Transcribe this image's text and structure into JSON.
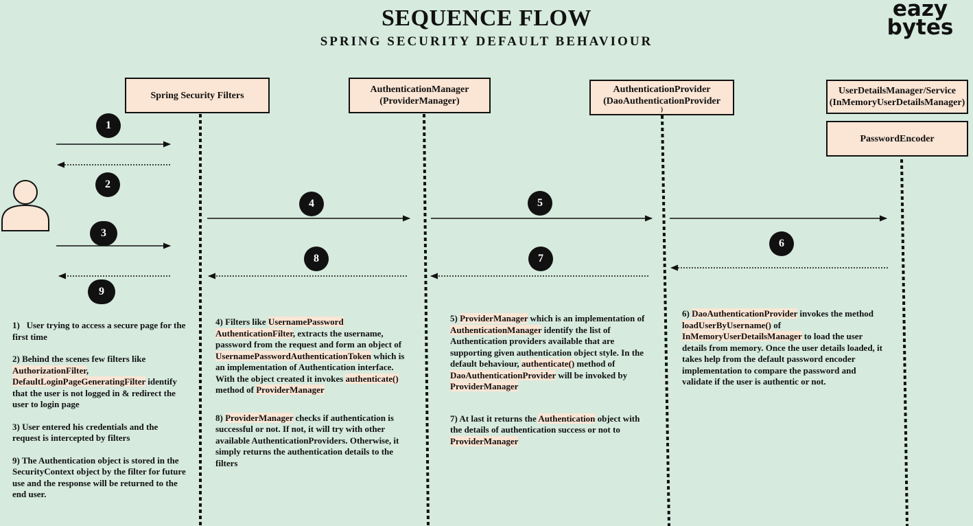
{
  "header": {
    "title": "SEQUENCE FLOW",
    "subtitle": "SPRING SECURITY DEFAULT BEHAVIOUR",
    "logo_line1": "eazy",
    "logo_line2": "bytes"
  },
  "components": {
    "filters": "Spring Security Filters",
    "manager_line1": "AuthenticationManager",
    "manager_line2": "(ProviderManager)",
    "provider_line1": "AuthenticationProvider",
    "provider_line2": "(DaoAuthenticationProvider",
    "provider_line3": ")",
    "userdetails_line1": "UserDetailsManager/Service",
    "userdetails_line2": "(InMemoryUserDetailsManager)",
    "encoder": "PasswordEncoder"
  },
  "steps": [
    "1",
    "2",
    "3",
    "4",
    "5",
    "6",
    "7",
    "8",
    "9"
  ],
  "notes": {
    "n1_num": "1)",
    "n1_text": "User trying to access a secure page for the first time",
    "n2_pre": "2) Behind the scenes few filters like ",
    "n2_h1": "AuthorizationFilter",
    "n2_mid": ", ",
    "n2_h2": "DefaultLoginPageGeneratingFilter",
    "n2_post": " identify that the user is not logged in & redirect the user to login page",
    "n3": "3) User entered his credentials and the request is intercepted by filters",
    "n9": "9) The Authentication object is stored in the SecurityContext object by the filter for future use and the response will be returned to the end user.",
    "n4_pre": "4) Filters like ",
    "n4_h1a": "UsernamePassword",
    "n4_h1b": "AuthenticationFilter",
    "n4_mid1": ", extracts the username, password from the request and form an object of ",
    "n4_h2": "UsernamePasswordAuthenticationToken",
    "n4_mid2": " which is an implementation of Authentication interface. With the object created it invokes ",
    "n4_h3": "authenticate()",
    "n4_mid3": " method of ",
    "n4_h4": "ProviderManager",
    "n8_pre": "8) ",
    "n8_h1": "ProviderManager",
    "n8_post": " checks if authentication is successful or not. If not, it will try with other available AuthenticationProviders. Otherwise, it simply returns the authentication details to the filters",
    "n5_pre": "5) ",
    "n5_h1": "ProviderManager",
    "n5_mid1": " which is an implementation of ",
    "n5_h2": "AuthenticationManager",
    "n5_mid2": " identify the list of Authentication providers available that are supporting given authentication object style. In the default behaviour, ",
    "n5_h3": "authenticate()",
    "n5_mid3": " method of ",
    "n5_h4": "DaoAuthenticationProvider",
    "n5_mid4": " will be invoked by ",
    "n5_h5": "ProviderManager",
    "n7_pre": "7) At last it returns the ",
    "n7_h1": "Authentication",
    "n7_mid": " object with the details of authentication success or not to ",
    "n7_h2": "ProviderManager",
    "n6_pre": "6) ",
    "n6_h1": "DaoAuthenticationProvider",
    "n6_mid1": " invokes the method ",
    "n6_h2": "loadUserByUsername()",
    "n6_mid2": " of ",
    "n6_h3": "InMemoryUserDetailsManager",
    "n6_post": " to load the user details from memory. Once the user details loaded, it takes help from the default password encoder implementation to compare the password and validate if the user is authentic or not."
  },
  "colors": {
    "background": "#d6eade",
    "box_fill": "#fbe5d4",
    "highlight": "#fbe5d4",
    "ink": "#111111"
  }
}
